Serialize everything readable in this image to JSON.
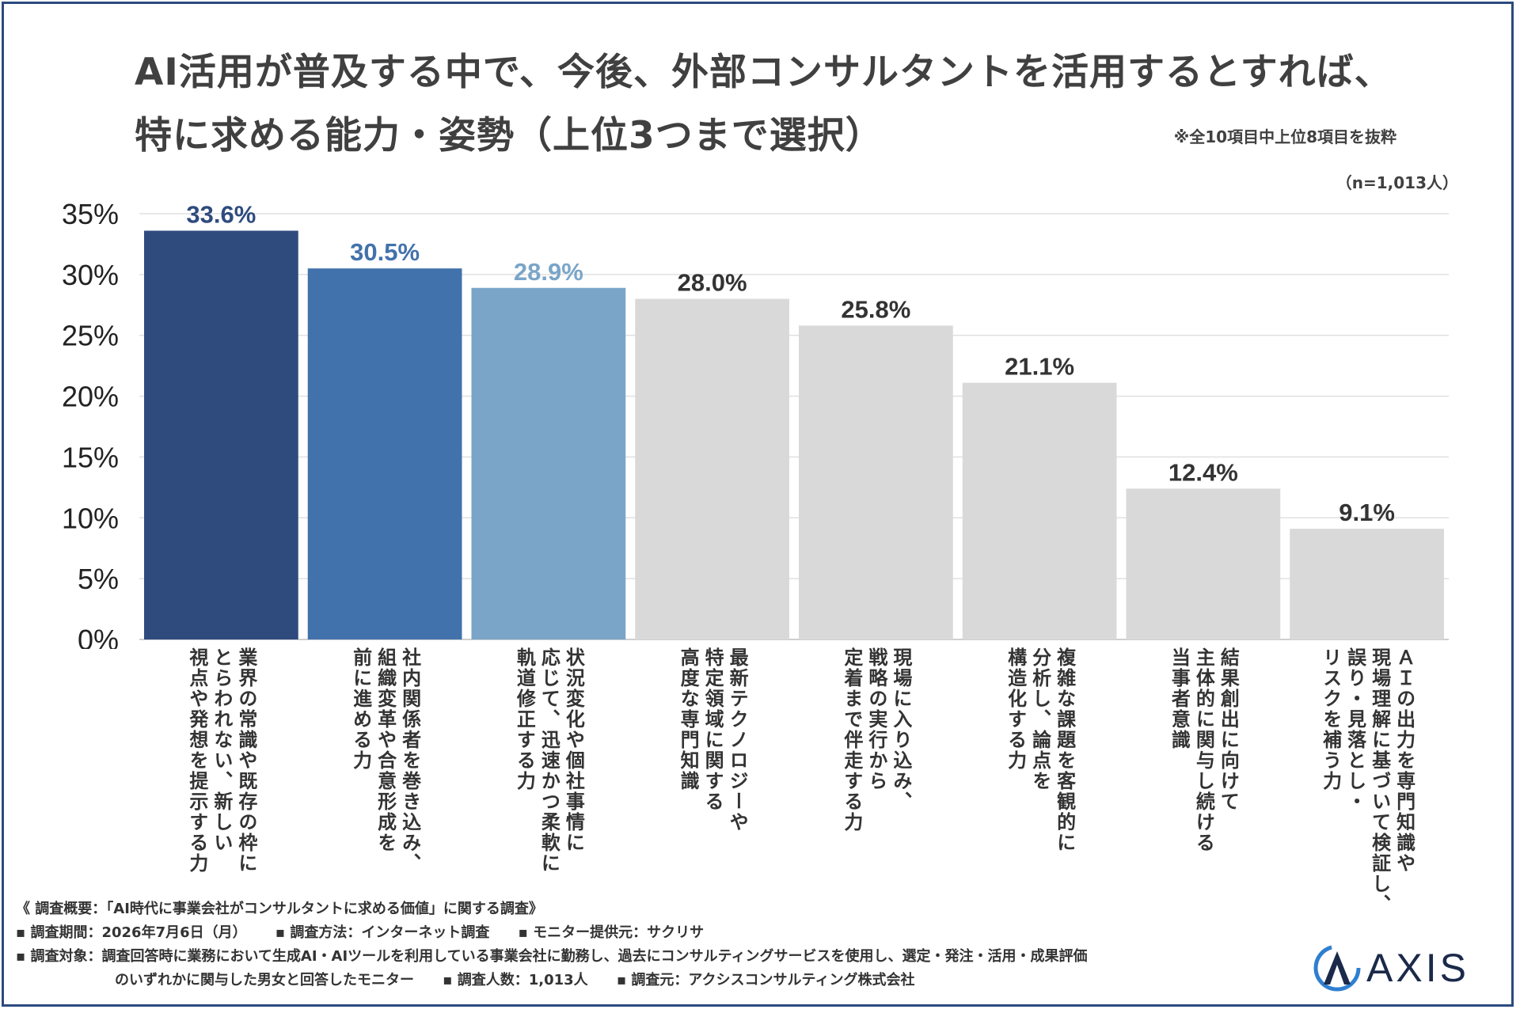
{
  "title_line1": "AI活用が普及する中で、今後、外部コンサルタントを活用するとすれば、",
  "title_line2": "特に求める能力・姿勢（上位3つまで選択）",
  "subnote": "※全10項目中上位8項目を抜粋",
  "sample_note": "（n=1,013人）",
  "chart_data": {
    "type": "bar",
    "categories": [
      "業界の常識や既存の枠に\nとらわれない、新しい\n視点や発想を提示する力",
      "社内関係者を巻き込み、\n組織変革や合意形成を\n前に進める力",
      "状況変化や個社事情に\n応じて、迅速かつ柔軟に\n軌道修正する力",
      "最新テクノロジーや\n特定領域に関する\n高度な専門知識",
      "現場に入り込み、\n戦略の実行から\n定着まで伴走する力",
      "複雑な課題を客観的に\n分析し、論点を\n構造化する力",
      "結果創出に向けて\n主体的に関与し続ける\n当事者意識",
      "ＡＩの出力を専門知識や\n現場理解に基づいて検証し、\n誤り・見落とし・\nリスクを補う力"
    ],
    "values": [
      33.6,
      30.5,
      28.9,
      28.0,
      25.8,
      21.1,
      12.4,
      9.1
    ],
    "value_labels": [
      "33.6%",
      "30.5%",
      "28.9%",
      "28.0%",
      "25.8%",
      "21.1%",
      "12.4%",
      "9.1%"
    ],
    "colors": [
      "#2f4b7e",
      "#4272ab",
      "#7aa5c8",
      "#d9d9d9",
      "#d9d9d9",
      "#d9d9d9",
      "#d9d9d9",
      "#d9d9d9"
    ],
    "label_colors": [
      "#2f4b7e",
      "#4272ab",
      "#7aa5c8",
      "#333333",
      "#333333",
      "#333333",
      "#333333",
      "#333333"
    ],
    "yticks": [
      "0%",
      "5%",
      "10%",
      "15%",
      "20%",
      "25%",
      "30%",
      "35%"
    ],
    "ylim": [
      0,
      35
    ],
    "grid": true
  },
  "footer": {
    "line1": "《 調査概要：「AI時代に事業会社がコンサルタントに求める価値」に関する調査》",
    "line2a": "▪ 調査期間：2026年7月6日（月）",
    "line2b": "▪ 調査方法：インターネット調査",
    "line2c": "▪ モニター提供元：サクリサ",
    "line3": "▪ 調査対象：調査回答時に業務において生成AI・AIツールを利用している事業会社に勤務し、過去にコンサルティングサービスを使用し、選定・発注・活用・成果評価",
    "line4a": "のいずれかに関与した男女と回答したモニター",
    "line4b": "▪ 調査人数：1,013人",
    "line4c": "▪ 調査元：アクシスコンサルティング株式会社"
  },
  "logo": {
    "text": "AXIS",
    "icon": "axis-logo-icon",
    "color": "#1b2a4a",
    "accent": "#2f7fd0"
  }
}
